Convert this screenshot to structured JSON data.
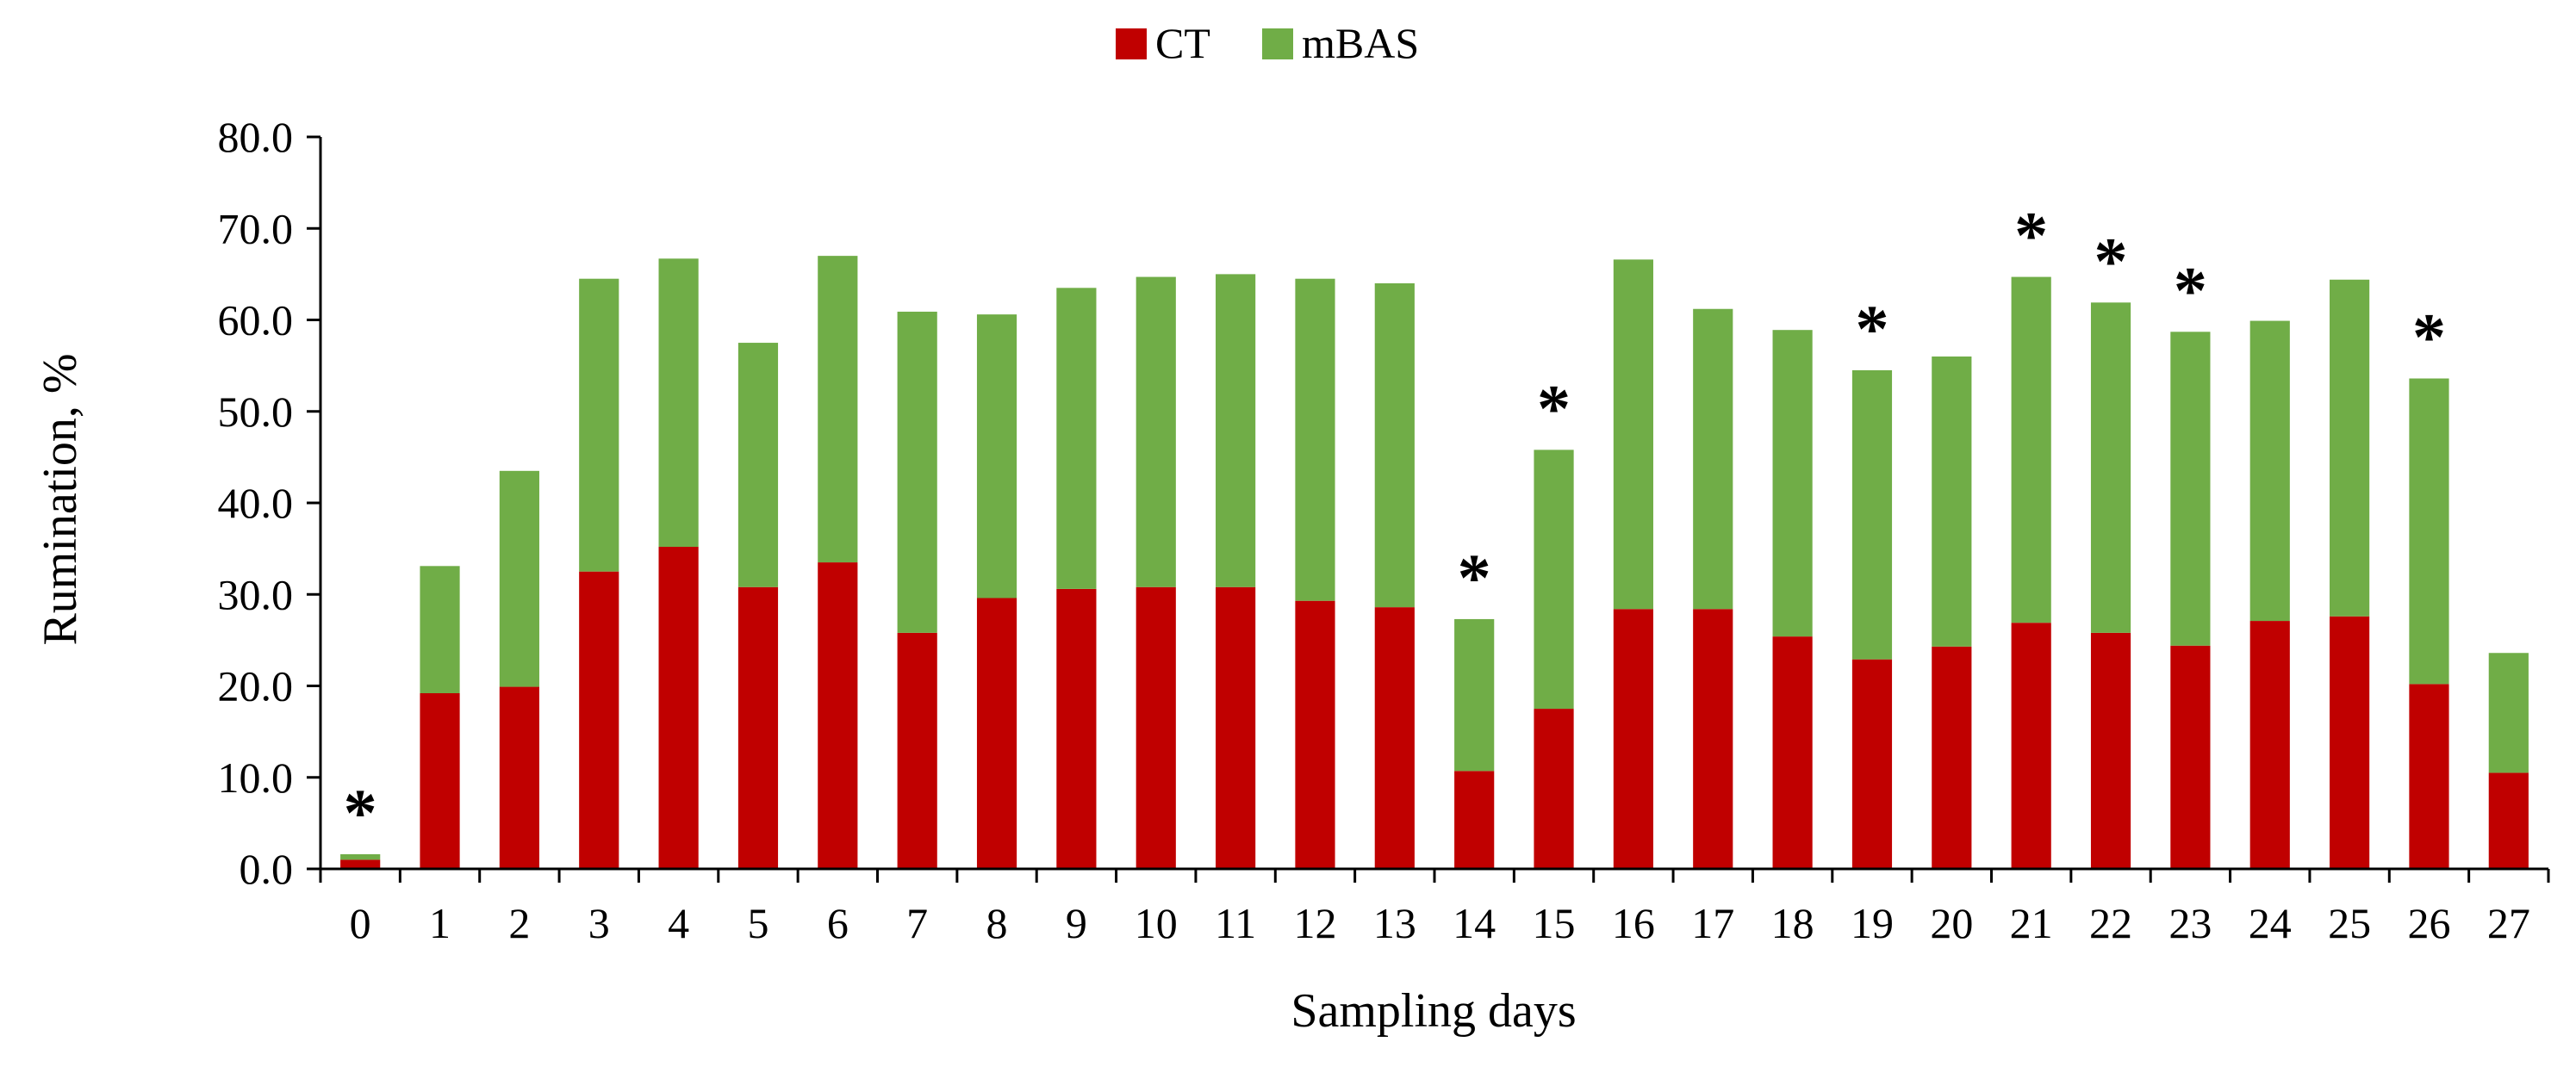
{
  "chart_data": {
    "type": "bar",
    "stacked": true,
    "title": "",
    "xlabel": "Sampling days",
    "ylabel": "Rumination, %",
    "ylim": [
      0,
      80
    ],
    "yticks": [
      "0.0",
      "10.0",
      "20.0",
      "30.0",
      "40.0",
      "50.0",
      "60.0",
      "70.0",
      "80.0"
    ],
    "categories": [
      "0",
      "1",
      "2",
      "3",
      "4",
      "5",
      "6",
      "7",
      "8",
      "9",
      "10",
      "11",
      "12",
      "13",
      "14",
      "15",
      "16",
      "17",
      "18",
      "19",
      "20",
      "21",
      "22",
      "23",
      "24",
      "25",
      "26",
      "27"
    ],
    "series": [
      {
        "name": "CT",
        "color": "#c00000",
        "values": [
          1.0,
          19.2,
          19.9,
          32.5,
          35.2,
          30.8,
          33.5,
          25.8,
          29.6,
          30.6,
          30.8,
          30.8,
          29.3,
          28.6,
          10.7,
          17.5,
          28.4,
          28.4,
          25.4,
          22.9,
          24.3,
          26.9,
          25.8,
          24.4,
          27.1,
          27.6,
          20.2,
          10.5
        ]
      },
      {
        "name": "mBAS",
        "color": "#70ad47",
        "values": [
          0.6,
          13.9,
          23.6,
          32.0,
          31.5,
          26.7,
          33.5,
          35.1,
          31.0,
          32.9,
          33.9,
          34.2,
          35.2,
          35.4,
          16.6,
          28.3,
          38.2,
          32.8,
          33.5,
          31.6,
          31.7,
          37.8,
          36.1,
          34.3,
          32.8,
          36.8,
          33.4,
          13.1
        ]
      }
    ],
    "significance": {
      "marker": "*",
      "categories": [
        "0",
        "14",
        "15",
        "19",
        "21",
        "22",
        "23",
        "26"
      ]
    },
    "legend": {
      "position": "top-center",
      "entries": [
        "CT",
        "mBAS"
      ]
    },
    "grid": false
  }
}
